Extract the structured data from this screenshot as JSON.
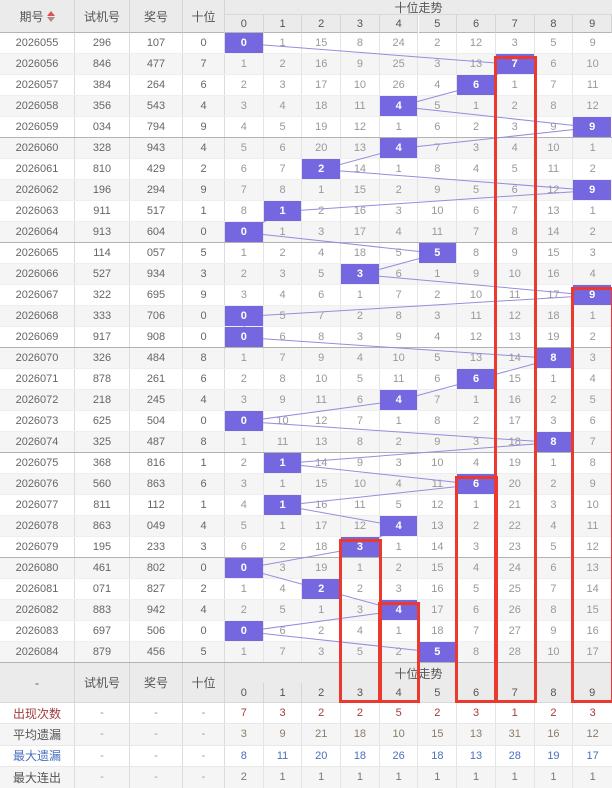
{
  "header": {
    "col_issue": "期号",
    "col_test": "试机号",
    "col_prize": "奖号",
    "col_tens": "十位",
    "trend_title": "十位走势",
    "digits": [
      "0",
      "1",
      "2",
      "3",
      "4",
      "5",
      "6",
      "7",
      "8",
      "9"
    ]
  },
  "rows": [
    {
      "issue": "2026055",
      "test": "296",
      "prize": "107",
      "tens": 0,
      "miss": [
        0,
        1,
        15,
        8,
        24,
        2,
        12,
        3,
        5,
        9
      ]
    },
    {
      "issue": "2026056",
      "test": "846",
      "prize": "477",
      "tens": 7,
      "miss": [
        1,
        2,
        16,
        9,
        25,
        3,
        13,
        7,
        6,
        10
      ]
    },
    {
      "issue": "2026057",
      "test": "384",
      "prize": "264",
      "tens": 6,
      "miss": [
        2,
        3,
        17,
        10,
        26,
        4,
        6,
        1,
        7,
        11
      ]
    },
    {
      "issue": "2026058",
      "test": "356",
      "prize": "543",
      "tens": 4,
      "miss": [
        3,
        4,
        18,
        11,
        4,
        5,
        1,
        2,
        8,
        12
      ]
    },
    {
      "issue": "2026059",
      "test": "034",
      "prize": "794",
      "tens": 9,
      "miss": [
        4,
        5,
        19,
        12,
        1,
        6,
        2,
        3,
        9,
        9
      ]
    },
    {
      "issue": "2026060",
      "test": "328",
      "prize": "943",
      "tens": 4,
      "miss": [
        5,
        6,
        20,
        13,
        4,
        7,
        3,
        4,
        10,
        1
      ]
    },
    {
      "issue": "2026061",
      "test": "810",
      "prize": "429",
      "tens": 2,
      "miss": [
        6,
        7,
        2,
        14,
        1,
        8,
        4,
        5,
        11,
        2
      ]
    },
    {
      "issue": "2026062",
      "test": "196",
      "prize": "294",
      "tens": 9,
      "miss": [
        7,
        8,
        1,
        15,
        2,
        9,
        5,
        6,
        12,
        9
      ]
    },
    {
      "issue": "2026063",
      "test": "911",
      "prize": "517",
      "tens": 1,
      "miss": [
        8,
        1,
        2,
        16,
        3,
        10,
        6,
        7,
        13,
        1
      ]
    },
    {
      "issue": "2026064",
      "test": "913",
      "prize": "604",
      "tens": 0,
      "miss": [
        0,
        1,
        3,
        17,
        4,
        11,
        7,
        8,
        14,
        2
      ]
    },
    {
      "issue": "2026065",
      "test": "114",
      "prize": "057",
      "tens": 5,
      "miss": [
        1,
        2,
        4,
        18,
        5,
        5,
        8,
        9,
        15,
        3
      ]
    },
    {
      "issue": "2026066",
      "test": "527",
      "prize": "934",
      "tens": 3,
      "miss": [
        2,
        3,
        5,
        3,
        6,
        1,
        9,
        10,
        16,
        4
      ]
    },
    {
      "issue": "2026067",
      "test": "322",
      "prize": "695",
      "tens": 9,
      "miss": [
        3,
        4,
        6,
        1,
        7,
        2,
        10,
        11,
        17,
        9
      ]
    },
    {
      "issue": "2026068",
      "test": "333",
      "prize": "706",
      "tens": 0,
      "miss": [
        0,
        5,
        7,
        2,
        8,
        3,
        11,
        12,
        18,
        1
      ]
    },
    {
      "issue": "2026069",
      "test": "917",
      "prize": "908",
      "tens": 0,
      "miss": [
        0,
        6,
        8,
        3,
        9,
        4,
        12,
        13,
        19,
        2
      ]
    },
    {
      "issue": "2026070",
      "test": "326",
      "prize": "484",
      "tens": 8,
      "miss": [
        1,
        7,
        9,
        4,
        10,
        5,
        13,
        14,
        8,
        3
      ]
    },
    {
      "issue": "2026071",
      "test": "878",
      "prize": "261",
      "tens": 6,
      "miss": [
        2,
        8,
        10,
        5,
        11,
        6,
        6,
        15,
        1,
        4
      ]
    },
    {
      "issue": "2026072",
      "test": "218",
      "prize": "245",
      "tens": 4,
      "miss": [
        3,
        9,
        11,
        6,
        4,
        7,
        1,
        16,
        2,
        5
      ]
    },
    {
      "issue": "2026073",
      "test": "625",
      "prize": "504",
      "tens": 0,
      "miss": [
        0,
        10,
        12,
        7,
        1,
        8,
        2,
        17,
        3,
        6
      ]
    },
    {
      "issue": "2026074",
      "test": "325",
      "prize": "487",
      "tens": 8,
      "miss": [
        1,
        11,
        13,
        8,
        2,
        9,
        3,
        18,
        8,
        7
      ]
    },
    {
      "issue": "2026075",
      "test": "368",
      "prize": "816",
      "tens": 1,
      "miss": [
        2,
        1,
        14,
        9,
        3,
        10,
        4,
        19,
        1,
        8
      ]
    },
    {
      "issue": "2026076",
      "test": "560",
      "prize": "863",
      "tens": 6,
      "miss": [
        3,
        1,
        15,
        10,
        4,
        11,
        6,
        20,
        2,
        9
      ]
    },
    {
      "issue": "2026077",
      "test": "811",
      "prize": "112",
      "tens": 1,
      "miss": [
        4,
        1,
        16,
        11,
        5,
        12,
        1,
        21,
        3,
        10
      ]
    },
    {
      "issue": "2026078",
      "test": "863",
      "prize": "049",
      "tens": 4,
      "miss": [
        5,
        1,
        17,
        12,
        4,
        13,
        2,
        22,
        4,
        11
      ]
    },
    {
      "issue": "2026079",
      "test": "195",
      "prize": "233",
      "tens": 3,
      "miss": [
        6,
        2,
        18,
        3,
        1,
        14,
        3,
        23,
        5,
        12
      ]
    },
    {
      "issue": "2026080",
      "test": "461",
      "prize": "802",
      "tens": 0,
      "miss": [
        0,
        3,
        19,
        1,
        2,
        15,
        4,
        24,
        6,
        13
      ]
    },
    {
      "issue": "2026081",
      "test": "071",
      "prize": "827",
      "tens": 2,
      "miss": [
        1,
        4,
        2,
        2,
        3,
        16,
        5,
        25,
        7,
        14
      ]
    },
    {
      "issue": "2026082",
      "test": "883",
      "prize": "942",
      "tens": 4,
      "miss": [
        2,
        5,
        1,
        3,
        4,
        17,
        6,
        26,
        8,
        15
      ]
    },
    {
      "issue": "2026083",
      "test": "697",
      "prize": "506",
      "tens": 0,
      "miss": [
        0,
        6,
        2,
        4,
        1,
        18,
        7,
        27,
        9,
        16
      ]
    },
    {
      "issue": "2026084",
      "test": "879",
      "prize": "456",
      "tens": 5,
      "miss": [
        1,
        7,
        3,
        5,
        2,
        5,
        8,
        28,
        10,
        17
      ]
    }
  ],
  "red_boxes": [
    {
      "column": 7,
      "from_issue": "2026056"
    },
    {
      "column": 9,
      "from_issue": "2026067"
    },
    {
      "column": 6,
      "from_issue": "2026076"
    },
    {
      "column": 3,
      "from_issue": "2026079"
    },
    {
      "column": 4,
      "from_issue": "2026082"
    }
  ],
  "footer": {
    "dash": "-",
    "trend_title": "十位走势",
    "stats": [
      {
        "label": "出现次数",
        "values": [
          7,
          3,
          2,
          2,
          5,
          2,
          3,
          1,
          2,
          3
        ],
        "label_color": "#a33c3c",
        "value_color": "#a33c3c",
        "dash_color": "#c07777"
      },
      {
        "label": "平均遗漏",
        "values": [
          3,
          9,
          21,
          18,
          10,
          15,
          13,
          31,
          16,
          12
        ],
        "label_color": "#555555",
        "value_color": "#8c7b68",
        "dash_color": "#999999"
      },
      {
        "label": "最大遗漏",
        "values": [
          8,
          11,
          20,
          18,
          26,
          18,
          13,
          28,
          19,
          17
        ],
        "label_color": "#4a6fc0",
        "value_color": "#4a6fc0",
        "dash_color": "#999999"
      },
      {
        "label": "最大连出",
        "values": [
          2,
          1,
          1,
          1,
          1,
          1,
          1,
          1,
          1,
          1
        ],
        "label_color": "#555555",
        "value_color": "#777777",
        "dash_color": "#999999"
      }
    ]
  },
  "colors": {
    "hit_cell": "#7467e0",
    "connector_line": "#968dde",
    "streak_box_red": "#ea392e",
    "header_bg": "#ebebeb",
    "zebra_row": "#f5f5f5"
  }
}
